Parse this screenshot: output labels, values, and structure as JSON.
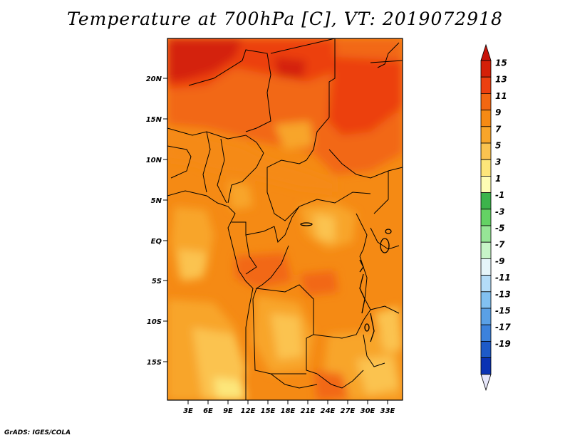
{
  "title": "Temperature at 700hPa [C], VT: 2019072918",
  "credit": "GrADS: IGES/COLA",
  "map": {
    "lat_ticks": [
      "20N",
      "15N",
      "10N",
      "5N",
      "EQ",
      "5S",
      "10S",
      "15S"
    ],
    "lon_ticks": [
      "3E",
      "6E",
      "9E",
      "12E",
      "15E",
      "18E",
      "21E",
      "24E",
      "27E",
      "30E",
      "33E"
    ],
    "units": "C",
    "dominant_range": "7 to 15"
  },
  "colorbar": {
    "labels": [
      "15",
      "13",
      "11",
      "9",
      "7",
      "5",
      "3",
      "1",
      "-1",
      "-3",
      "-5",
      "-7",
      "-9",
      "-11",
      "-13",
      "-15",
      "-17",
      "-19"
    ],
    "colors": [
      "#d42008",
      "#ec4010",
      "#f26712",
      "#f58a14",
      "#f8a52a",
      "#fbc350",
      "#fde67a",
      "#fefdb4",
      "#3cb44b",
      "#64d264",
      "#96e696",
      "#c8f5c8",
      "#e6f5fa",
      "#b4dcf8",
      "#82c0f0",
      "#5aa0e6",
      "#3c82dc",
      "#1e5ac8",
      "#0a32b4",
      "#001478"
    ],
    "top_arrow_color": "#c8140a",
    "bottom_arrow_color": "#e6e6fa"
  }
}
